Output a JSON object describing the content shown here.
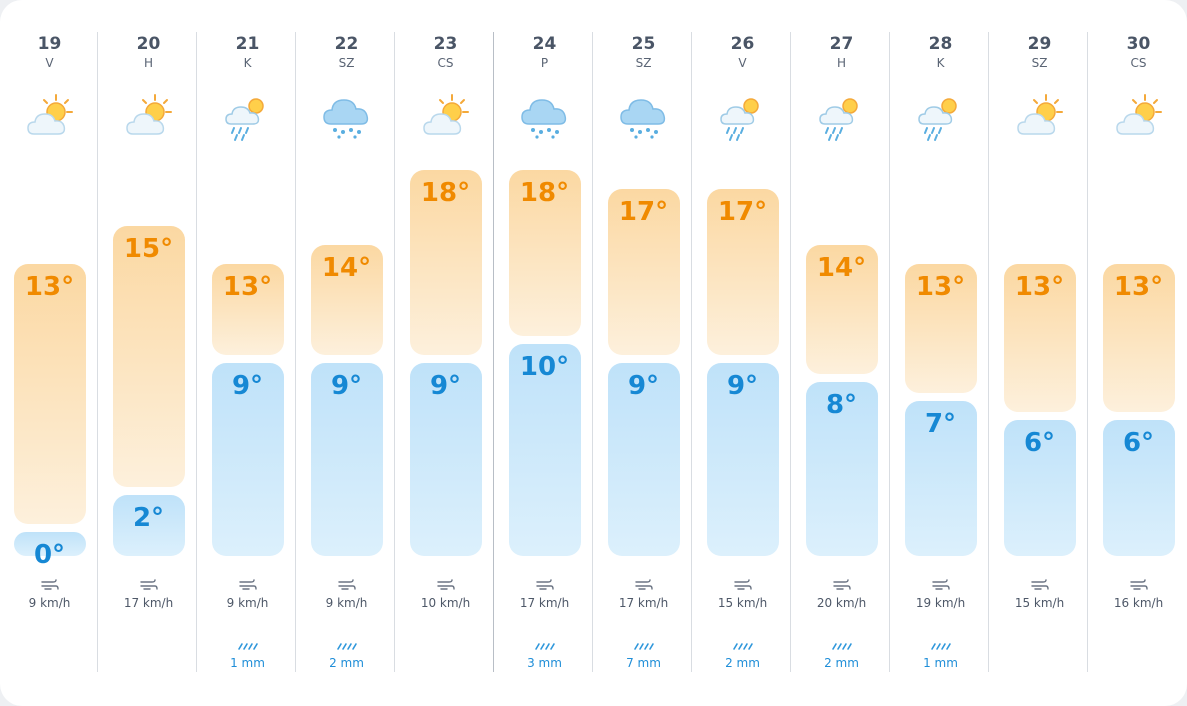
{
  "forecast": {
    "days": [
      {
        "day": "19",
        "name": "V",
        "icon": "partly-cloudy-icon",
        "max": "13°",
        "min": "0°",
        "max_c": 13,
        "min_c": 0,
        "wind": "9 km/h",
        "rain": ""
      },
      {
        "day": "20",
        "name": "H",
        "icon": "partly-cloudy-icon",
        "max": "15°",
        "min": "2°",
        "max_c": 15,
        "min_c": 2,
        "wind": "17 km/h",
        "rain": ""
      },
      {
        "day": "21",
        "name": "K",
        "icon": "sun-rain-icon",
        "max": "13°",
        "min": "9°",
        "max_c": 13,
        "min_c": 9,
        "wind": "9 km/h",
        "rain": "1 mm"
      },
      {
        "day": "22",
        "name": "SZ",
        "icon": "rain-cloud-icon",
        "max": "14°",
        "min": "9°",
        "max_c": 14,
        "min_c": 9,
        "wind": "9 km/h",
        "rain": "2 mm"
      },
      {
        "day": "23",
        "name": "CS",
        "icon": "partly-cloudy-icon",
        "max": "18°",
        "min": "9°",
        "max_c": 18,
        "min_c": 9,
        "wind": "10 km/h",
        "rain": ""
      },
      {
        "day": "24",
        "name": "P",
        "icon": "rain-cloud-icon",
        "max": "18°",
        "min": "10°",
        "max_c": 18,
        "min_c": 10,
        "wind": "17 km/h",
        "rain": "3 mm"
      },
      {
        "day": "25",
        "name": "SZ",
        "icon": "rain-cloud-icon",
        "max": "17°",
        "min": "9°",
        "max_c": 17,
        "min_c": 9,
        "wind": "17 km/h",
        "rain": "7 mm"
      },
      {
        "day": "26",
        "name": "V",
        "icon": "sun-rain-icon",
        "max": "17°",
        "min": "9°",
        "max_c": 17,
        "min_c": 9,
        "wind": "15 km/h",
        "rain": "2 mm"
      },
      {
        "day": "27",
        "name": "H",
        "icon": "sun-rain-icon",
        "max": "14°",
        "min": "8°",
        "max_c": 14,
        "min_c": 8,
        "wind": "20 km/h",
        "rain": "2 mm"
      },
      {
        "day": "28",
        "name": "K",
        "icon": "sun-rain-icon",
        "max": "13°",
        "min": "7°",
        "max_c": 13,
        "min_c": 7,
        "wind": "19 km/h",
        "rain": "1 mm"
      },
      {
        "day": "29",
        "name": "SZ",
        "icon": "partly-cloudy-icon",
        "max": "13°",
        "min": "6°",
        "max_c": 13,
        "min_c": 6,
        "wind": "15 km/h",
        "rain": ""
      },
      {
        "day": "30",
        "name": "CS",
        "icon": "partly-cloudy-icon",
        "max": "13°",
        "min": "6°",
        "max_c": 13,
        "min_c": 6,
        "wind": "16 km/h",
        "rain": ""
      }
    ]
  },
  "colors": {
    "max_text": "#f08a00",
    "min_text": "#1688d4",
    "rain_text": "#1f8ed8"
  },
  "icons": {
    "wind": "wind-icon",
    "rain": "rain-amount-icon"
  }
}
